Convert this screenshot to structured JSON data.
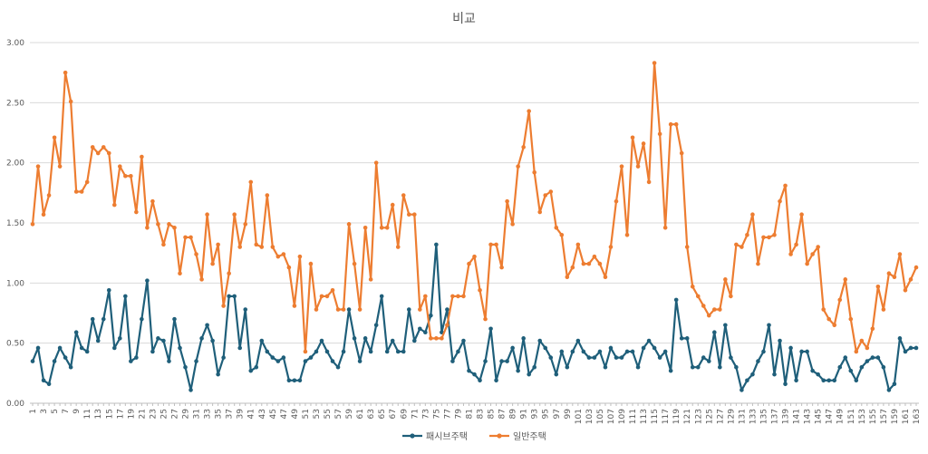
{
  "chart_data": {
    "type": "line",
    "title": "비교",
    "xlabel": "",
    "ylabel": "",
    "ylim": [
      0,
      3
    ],
    "yticks": [
      "0.00",
      "0.50",
      "1.00",
      "1.50",
      "2.00",
      "2.50",
      "3.00"
    ],
    "grid": true,
    "legend_position": "bottom",
    "x": [
      1,
      2,
      3,
      4,
      5,
      6,
      7,
      8,
      9,
      10,
      11,
      12,
      13,
      14,
      15,
      16,
      17,
      18,
      19,
      20,
      21,
      22,
      23,
      24,
      25,
      26,
      27,
      28,
      29,
      30,
      31,
      32,
      33,
      34,
      35,
      36,
      37,
      38,
      39,
      40,
      41,
      42,
      43,
      44,
      45,
      46,
      47,
      48,
      49,
      50,
      51,
      52,
      53,
      54,
      55,
      56,
      57,
      58,
      59,
      60,
      61,
      62,
      63,
      64,
      65,
      66,
      67,
      68,
      69,
      70,
      71,
      72,
      73,
      74,
      75,
      76,
      77,
      78,
      79,
      80,
      81,
      82,
      83,
      84,
      85,
      86,
      87,
      88,
      89,
      90,
      91,
      92,
      93,
      94,
      95,
      96,
      97,
      98,
      99,
      100,
      101,
      102,
      103,
      104,
      105,
      106,
      107,
      108,
      109,
      110,
      111,
      112,
      113,
      114,
      115,
      116,
      117,
      118,
      119,
      120,
      121,
      122,
      123,
      124,
      125,
      126,
      127,
      128,
      129,
      130,
      131,
      132,
      133,
      134,
      135,
      136,
      137,
      138,
      139,
      140,
      141,
      142,
      143,
      144,
      145,
      146,
      147,
      148,
      149,
      150,
      151,
      152,
      153,
      154,
      155,
      156,
      157,
      158,
      159,
      160,
      161,
      162,
      163
    ],
    "x_tick_labels": [
      "1",
      "3",
      "5",
      "7",
      "9",
      "11",
      "13",
      "15",
      "17",
      "19",
      "21",
      "23",
      "25",
      "27",
      "29",
      "31",
      "33",
      "35",
      "37",
      "39",
      "41",
      "43",
      "45",
      "47",
      "49",
      "51",
      "53",
      "55",
      "57",
      "59",
      "61",
      "63",
      "65",
      "67",
      "69",
      "71",
      "73",
      "75",
      "77",
      "79",
      "81",
      "83",
      "85",
      "87",
      "89",
      "91",
      "93",
      "95",
      "97",
      "99",
      "101",
      "103",
      "105",
      "107",
      "109",
      "111",
      "113",
      "115",
      "117",
      "119",
      "121",
      "123",
      "125",
      "127",
      "129",
      "131",
      "133",
      "135",
      "137",
      "139",
      "141",
      "143",
      "145",
      "147",
      "149",
      "151",
      "153",
      "155",
      "157",
      "159",
      "161",
      "163"
    ],
    "series": [
      {
        "name": "패시브주택",
        "color": "#1f5f7a",
        "values": [
          0.35,
          0.46,
          0.19,
          0.16,
          0.35,
          0.46,
          0.38,
          0.3,
          0.59,
          0.46,
          0.43,
          0.7,
          0.52,
          0.7,
          0.94,
          0.46,
          0.54,
          0.89,
          0.35,
          0.38,
          0.7,
          1.02,
          0.43,
          0.54,
          0.52,
          0.35,
          0.7,
          0.46,
          0.3,
          0.11,
          0.35,
          0.54,
          0.65,
          0.52,
          0.24,
          0.38,
          0.89,
          0.89,
          0.46,
          0.78,
          0.27,
          0.3,
          0.52,
          0.43,
          0.38,
          0.35,
          0.38,
          0.19,
          0.19,
          0.19,
          0.35,
          0.38,
          0.43,
          0.52,
          0.43,
          0.35,
          0.3,
          0.43,
          0.78,
          0.54,
          0.35,
          0.54,
          0.43,
          0.65,
          0.89,
          0.43,
          0.52,
          0.43,
          0.43,
          0.78,
          0.52,
          0.62,
          0.59,
          0.73,
          1.32,
          0.59,
          0.78,
          0.35,
          0.43,
          0.52,
          0.27,
          0.24,
          0.19,
          0.35,
          0.62,
          0.19,
          0.35,
          0.35,
          0.46,
          0.27,
          0.54,
          0.24,
          0.3,
          0.52,
          0.46,
          0.38,
          0.24,
          0.43,
          0.3,
          0.43,
          0.52,
          0.43,
          0.38,
          0.38,
          0.43,
          0.3,
          0.46,
          0.38,
          0.38,
          0.43,
          0.43,
          0.3,
          0.46,
          0.52,
          0.46,
          0.38,
          0.43,
          0.27,
          0.86,
          0.54,
          0.54,
          0.3,
          0.3,
          0.38,
          0.35,
          0.59,
          0.3,
          0.65,
          0.38,
          0.3,
          0.11,
          0.19,
          0.24,
          0.35,
          0.43,
          0.65,
          0.24,
          0.52,
          0.16,
          0.46,
          0.19,
          0.43,
          0.43,
          0.27,
          0.24,
          0.19,
          0.19,
          0.19,
          0.3,
          0.38,
          0.27,
          0.19,
          0.3,
          0.35,
          0.38,
          0.38,
          0.3,
          0.11,
          0.16,
          0.54,
          0.43,
          0.46,
          0.46
        ]
      },
      {
        "name": "일반주택",
        "color": "#ed7d31",
        "values": [
          1.49,
          1.97,
          1.57,
          1.73,
          2.21,
          1.97,
          2.75,
          2.51,
          1.76,
          1.76,
          1.84,
          2.13,
          2.08,
          2.13,
          2.08,
          1.65,
          1.97,
          1.89,
          1.89,
          1.59,
          2.05,
          1.46,
          1.68,
          1.49,
          1.32,
          1.49,
          1.46,
          1.08,
          1.38,
          1.38,
          1.24,
          1.03,
          1.57,
          1.16,
          1.32,
          0.81,
          1.08,
          1.57,
          1.3,
          1.49,
          1.84,
          1.32,
          1.3,
          1.73,
          1.3,
          1.22,
          1.24,
          1.13,
          0.81,
          1.22,
          0.43,
          1.16,
          0.78,
          0.89,
          0.89,
          0.94,
          0.78,
          0.78,
          1.49,
          1.16,
          0.78,
          1.46,
          1.03,
          2.0,
          1.46,
          1.46,
          1.65,
          1.3,
          1.73,
          1.57,
          1.57,
          0.78,
          0.89,
          0.54,
          0.54,
          0.54,
          0.65,
          0.89,
          0.89,
          0.89,
          1.16,
          1.22,
          0.94,
          0.7,
          1.32,
          1.32,
          1.13,
          1.68,
          1.49,
          1.97,
          2.13,
          2.43,
          1.92,
          1.59,
          1.73,
          1.76,
          1.46,
          1.4,
          1.05,
          1.13,
          1.32,
          1.16,
          1.16,
          1.22,
          1.16,
          1.05,
          1.3,
          1.68,
          1.97,
          1.4,
          2.21,
          1.97,
          2.16,
          1.84,
          2.83,
          2.24,
          1.46,
          2.32,
          2.32,
          2.08,
          1.3,
          0.97,
          0.89,
          0.81,
          0.73,
          0.78,
          0.78,
          1.03,
          0.89,
          1.32,
          1.3,
          1.4,
          1.57,
          1.16,
          1.38,
          1.38,
          1.4,
          1.68,
          1.81,
          1.24,
          1.32,
          1.57,
          1.16,
          1.24,
          1.3,
          0.78,
          0.7,
          0.65,
          0.86,
          1.03,
          0.7,
          0.43,
          0.52,
          0.46,
          0.62,
          0.97,
          0.78,
          1.08,
          1.05,
          1.24,
          0.94,
          1.03,
          1.13
        ]
      }
    ]
  }
}
